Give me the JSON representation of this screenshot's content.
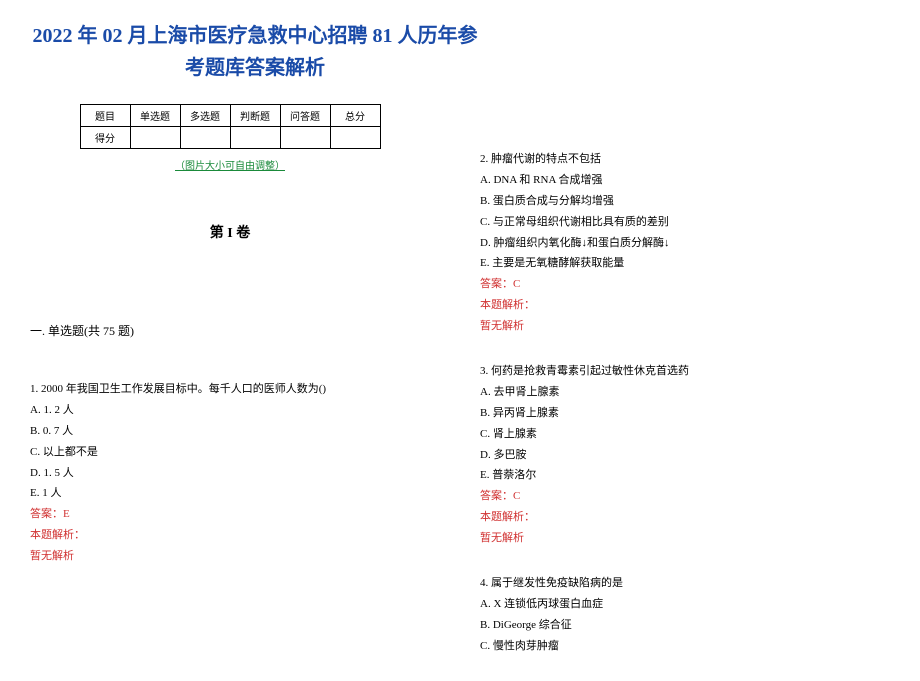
{
  "title": "2022 年 02 月上海市医疗急救中心招聘 81 人历年参考题库答案解析",
  "score_table": {
    "headers": [
      "题目",
      "单选题",
      "多选题",
      "判断题",
      "问答题",
      "总分"
    ],
    "row_label": "得分"
  },
  "resize_note": "（图片大小可自由调整）",
  "volume": "第 I 卷",
  "section": "一. 单选题(共 75 题)",
  "questions": [
    {
      "text": "1. 2000 年我国卫生工作发展目标中。每千人口的医师人数为()",
      "options": [
        "A. 1. 2 人",
        "B. 0. 7 人",
        "C. 以上都不是",
        "D. 1. 5 人",
        "E. 1 人"
      ],
      "answer": "答案：E",
      "analysis_label": "本题解析：",
      "analysis": "暂无解析"
    },
    {
      "text": "2. 肿瘤代谢的特点不包括",
      "options": [
        "A. DNA 和 RNA 合成增强",
        "B. 蛋白质合成与分解均增强",
        "C. 与正常母组织代谢相比具有质的差别",
        "D. 肿瘤组织内氧化酶↓和蛋白质分解酶↓",
        "E. 主要是无氧糖酵解获取能量"
      ],
      "answer": "答案：C",
      "analysis_label": "本题解析：",
      "analysis": "暂无解析"
    },
    {
      "text": "3. 何药是抢救青霉素引起过敏性休克首选药",
      "options": [
        "A. 去甲肾上腺素",
        "B. 异丙肾上腺素",
        "C. 肾上腺素",
        "D. 多巴胺",
        "E. 普萘洛尔"
      ],
      "answer": "答案：C",
      "analysis_label": "本题解析：",
      "analysis": "暂无解析"
    },
    {
      "text": "4. 属于继发性免疫缺陷病的是",
      "options": [
        "A. X 连锁低丙球蛋白血症",
        "B. DiGeorge 综合征",
        "C. 慢性肉芽肿瘤"
      ],
      "answer": "",
      "analysis_label": "",
      "analysis": ""
    }
  ],
  "colors": {
    "title": "#1a4ba8",
    "answer": "#d03030",
    "note": "#1a8a3a",
    "text": "#000000"
  }
}
